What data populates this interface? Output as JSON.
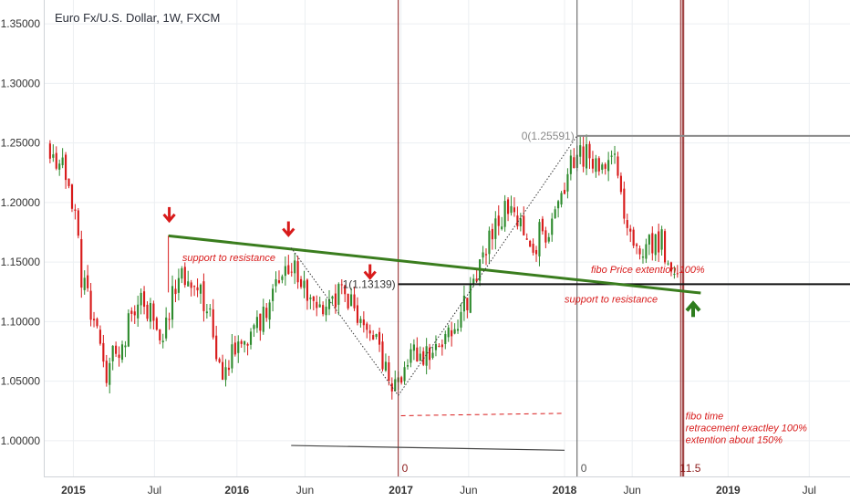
{
  "chart_data": {
    "type": "candlestick",
    "title": "Euro Fx/U.S. Dollar, 1W, FXCM",
    "xlabel": "",
    "ylabel": "",
    "ylim": [
      0.97,
      1.37
    ],
    "x_range": [
      "2014-10-27",
      "2019-09-30"
    ],
    "y_ticks": [
      "1.35000",
      "1.30000",
      "1.25000",
      "1.20000",
      "1.15000",
      "1.10000",
      "1.05000",
      "1.00000"
    ],
    "x_ticks": [
      {
        "label": "2015",
        "date": "2015-01-01",
        "bold": true
      },
      {
        "label": "Jul",
        "date": "2015-07-01",
        "bold": false
      },
      {
        "label": "2016",
        "date": "2016-01-01",
        "bold": true
      },
      {
        "label": "Jun",
        "date": "2016-06-01",
        "bold": false
      },
      {
        "label": "2017",
        "date": "2017-01-01",
        "bold": true
      },
      {
        "label": "Jun",
        "date": "2017-06-01",
        "bold": false
      },
      {
        "label": "2018",
        "date": "2018-01-01",
        "bold": true
      },
      {
        "label": "Jun",
        "date": "2018-06-01",
        "bold": false
      },
      {
        "label": "2019",
        "date": "2019-01-01",
        "bold": true
      },
      {
        "label": "Jul",
        "date": "2019-07-01",
        "bold": false
      }
    ],
    "grid": true,
    "colors": {
      "up": "#2e8b2e",
      "down": "#d81b1b",
      "trendline": "#3a7d1e",
      "time_lines": "#8b1a1a"
    },
    "price_path": [
      [
        "2014-11-10",
        1.245
      ],
      [
        "2014-12-22",
        1.225
      ],
      [
        "2015-01-19",
        1.14
      ],
      [
        "2015-03-16",
        1.06
      ],
      [
        "2015-04-27",
        1.09
      ],
      [
        "2015-06-01",
        1.12
      ],
      [
        "2015-07-20",
        1.09
      ],
      [
        "2015-08-24",
        1.14
      ],
      [
        "2015-10-12",
        1.13
      ],
      [
        "2015-11-30",
        1.06
      ],
      [
        "2016-01-25",
        1.085
      ],
      [
        "2016-03-21",
        1.12
      ],
      [
        "2016-05-02",
        1.145
      ],
      [
        "2016-06-27",
        1.11
      ],
      [
        "2016-08-22",
        1.125
      ],
      [
        "2016-10-31",
        1.09
      ],
      [
        "2016-12-19",
        1.04
      ],
      [
        "2017-01-30",
        1.07
      ],
      [
        "2017-03-27",
        1.07
      ],
      [
        "2017-04-24",
        1.09
      ],
      [
        "2017-06-05",
        1.125
      ],
      [
        "2017-07-31",
        1.18
      ],
      [
        "2017-09-04",
        1.2
      ],
      [
        "2017-10-23",
        1.165
      ],
      [
        "2017-12-04",
        1.185
      ],
      [
        "2018-01-29",
        1.245
      ],
      [
        "2018-03-05",
        1.235
      ],
      [
        "2018-04-23",
        1.23
      ],
      [
        "2018-05-28",
        1.165
      ],
      [
        "2018-06-25",
        1.165
      ],
      [
        "2018-08-06",
        1.17
      ],
      [
        "2018-08-27",
        1.14
      ],
      [
        "2018-09-10",
        1.135
      ]
    ],
    "trendlines": [
      {
        "name": "green-trendline",
        "from": [
          "2015-08-01",
          1.172
        ],
        "to": [
          "2018-11-01",
          1.124
        ]
      },
      {
        "name": "lower-gray-line",
        "from": [
          "2016-05-01",
          0.996
        ],
        "to": [
          "2018-01-01",
          0.992
        ]
      },
      {
        "name": "red-dashed-line",
        "from": [
          "2017-01-01",
          1.021
        ],
        "to": [
          "2018-01-01",
          1.023
        ]
      },
      {
        "name": "dotted-swing-1",
        "from": [
          "2016-05-01",
          1.162
        ],
        "to": [
          "2016-12-26",
          1.038
        ]
      },
      {
        "name": "dotted-swing-2",
        "from": [
          "2016-12-26",
          1.038
        ],
        "to": [
          "2018-01-29",
          1.256
        ]
      }
    ],
    "fibonacci": {
      "level_0": {
        "label": "0(1.25591)",
        "value": 1.25591,
        "from": "2018-01-29"
      },
      "level_1": {
        "label": "1(1.13139)",
        "value": 1.13139,
        "from": "2016-12-26"
      }
    },
    "time_lines": [
      {
        "date": "2016-12-26",
        "label": "0",
        "color": "#8b1a1a"
      },
      {
        "date": "2018-01-29",
        "label": "0",
        "color": "#555555"
      },
      {
        "date": "2018-09-17",
        "label": "1",
        "color": "#8b1a1a"
      },
      {
        "date": "2018-09-24",
        "label": "1.5",
        "color": "#8b1a1a"
      }
    ],
    "arrows": [
      {
        "date": "2015-08-03",
        "value": 1.19,
        "direction": "down",
        "color": "#d81b1b"
      },
      {
        "date": "2016-04-25",
        "value": 1.178,
        "direction": "down",
        "color": "#d81b1b"
      },
      {
        "date": "2016-10-24",
        "value": 1.142,
        "direction": "down",
        "color": "#d81b1b"
      },
      {
        "date": "2018-10-15",
        "value": 1.11,
        "direction": "up",
        "color": "#2e7d1e"
      }
    ],
    "annotations": [
      {
        "text": "support to resistance",
        "date": "2015-09-01",
        "value": 1.151
      },
      {
        "text": "fibo Price extention 100%",
        "date": "2018-03-01",
        "value": 1.141
      },
      {
        "text": "support to resistance",
        "date": "2018-01-01",
        "value": 1.116
      },
      {
        "text": "fibo time",
        "date": "2018-09-28",
        "value": 1.018
      },
      {
        "text": "retracement exactley 100%",
        "date": "2018-09-28",
        "value": 1.008
      },
      {
        "text": "extention about 150%",
        "date": "2018-09-28",
        "value": 0.998
      }
    ]
  }
}
